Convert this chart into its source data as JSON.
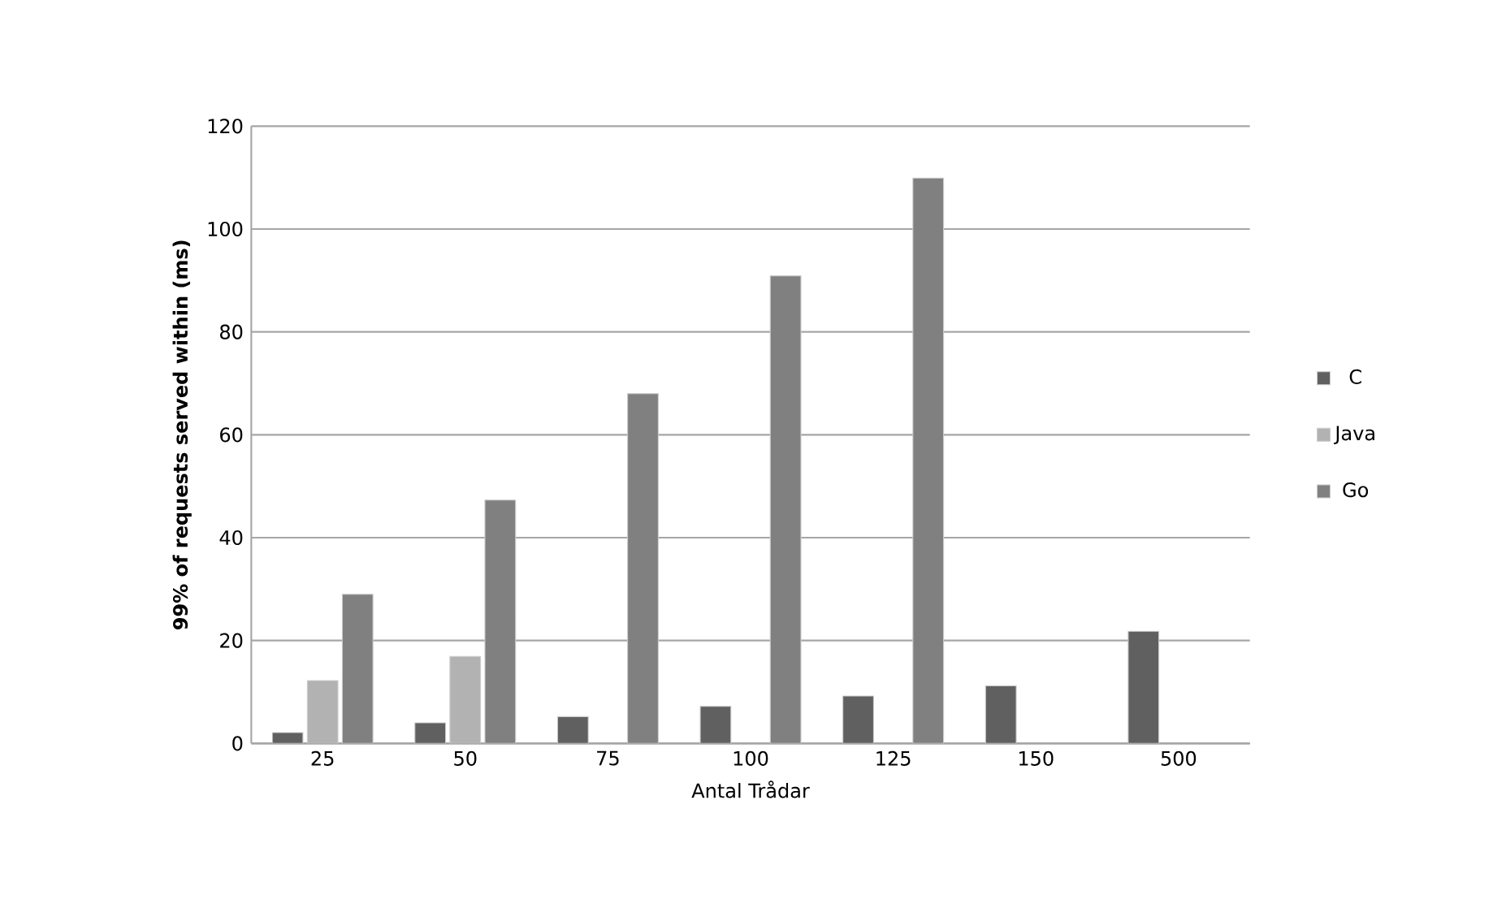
{
  "chart_data": {
    "type": "bar",
    "xlabel": "Antal Trådar",
    "ylabel": "99% of requests served within (ms)",
    "categories": [
      "25",
      "50",
      "75",
      "100",
      "125",
      "150",
      "500"
    ],
    "series": [
      {
        "name": "C",
        "color": "#606060",
        "values": [
          2.1,
          4.0,
          5.2,
          7.2,
          9.2,
          11.2,
          21.8
        ]
      },
      {
        "name": "Java",
        "color": "#b2b2b2",
        "values": [
          12.2,
          16.9,
          null,
          null,
          null,
          null,
          null
        ]
      },
      {
        "name": "Go",
        "color": "#808080",
        "values": [
          29,
          47.3,
          68.0,
          90.9,
          109.9,
          null,
          null
        ]
      }
    ],
    "ylim": [
      0,
      120
    ],
    "yticks": [
      0,
      20,
      40,
      60,
      80,
      100,
      120
    ],
    "grid": "y",
    "legend": "right"
  }
}
